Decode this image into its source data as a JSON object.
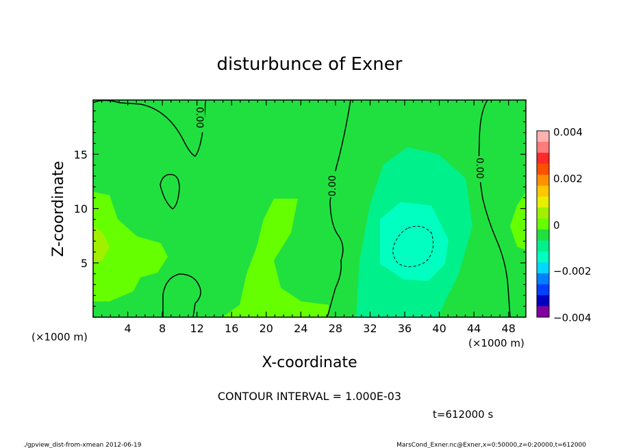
{
  "chart_data": {
    "type": "heatmap",
    "title": "disturbunce of Exner",
    "xlabel": "X-coordinate",
    "ylabel": "Z-coordinate",
    "x_unit": "(×1000 m)",
    "y_unit": "(×1000 m)",
    "xlim": [
      0,
      50
    ],
    "ylim": [
      0,
      20
    ],
    "x_ticks": [
      4,
      8,
      12,
      16,
      20,
      24,
      28,
      32,
      36,
      40,
      44,
      48
    ],
    "y_ticks": [
      5,
      10,
      15
    ],
    "contour_labels": [
      "0.00",
      "0.00",
      "0.00"
    ],
    "contour_interval_text": "CONTOUR INTERVAL = 1.000E-03",
    "time_text": "t=612000 s",
    "colorbar": {
      "ticks": [
        "0.004",
        "0.002",
        "0",
        "−0.002",
        "−0.004"
      ],
      "levels": [
        {
          "value": 0.004,
          "color": "#ffb0b0"
        },
        {
          "value": 0.0035,
          "color": "#ff7a7a"
        },
        {
          "value": 0.003,
          "color": "#ff2a2a"
        },
        {
          "value": 0.0025,
          "color": "#ff5000"
        },
        {
          "value": 0.002,
          "color": "#ff9000"
        },
        {
          "value": 0.0015,
          "color": "#ffc800"
        },
        {
          "value": 0.001,
          "color": "#e6f000"
        },
        {
          "value": 0.0005,
          "color": "#a0f000"
        },
        {
          "value": 0.0,
          "color": "#66ff00"
        },
        {
          "value": -0.0005,
          "color": "#20e040"
        },
        {
          "value": -0.001,
          "color": "#00f08c"
        },
        {
          "value": -0.0015,
          "color": "#00ffc0"
        },
        {
          "value": -0.002,
          "color": "#00d8ff"
        },
        {
          "value": -0.0025,
          "color": "#0080ff"
        },
        {
          "value": -0.003,
          "color": "#0040ff"
        },
        {
          "value": -0.0035,
          "color": "#0000c0"
        },
        {
          "value": -0.004,
          "color": "#8000a0"
        }
      ]
    }
  },
  "footer": {
    "left": "./gpview_dist-from-xmean  2012-06-19",
    "right": "MarsCond_Exner.nc@Exner,x=0:50000,z=0:20000,t=612000"
  }
}
